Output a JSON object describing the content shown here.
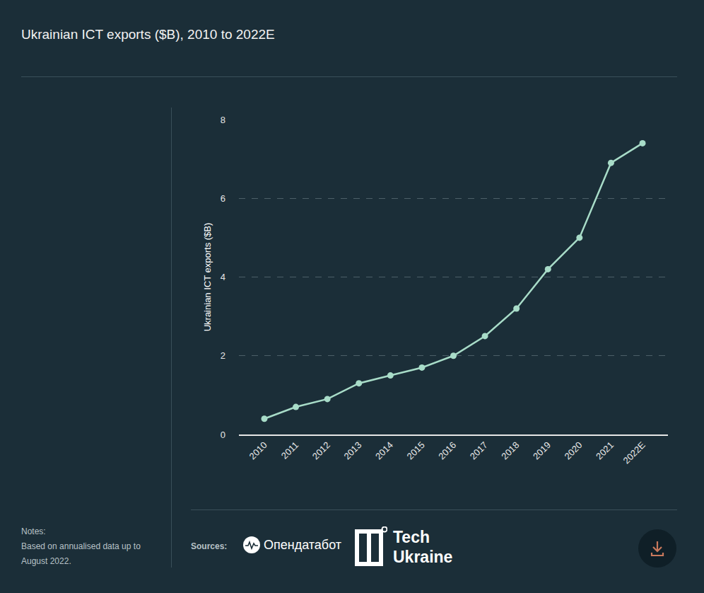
{
  "chart_data": {
    "type": "line",
    "title": "Ukrainian ICT exports ($B), 2010 to 2022E",
    "y_label": "Ukrainian ICT exports ($B)",
    "categories": [
      "2010",
      "2011",
      "2012",
      "2013",
      "2014",
      "2015",
      "2016",
      "2017",
      "2018",
      "2019",
      "2020",
      "2021",
      "2022E"
    ],
    "values": [
      0.4,
      0.7,
      0.9,
      1.3,
      1.5,
      1.7,
      2.0,
      2.5,
      3.2,
      4.2,
      5.0,
      6.9,
      7.4
    ],
    "color": "#a8dcc8",
    "marker": "circle",
    "line_style": "solid",
    "ylim": [
      0,
      8
    ],
    "yticks": [
      0,
      2,
      4,
      6,
      8
    ],
    "grid": true
  },
  "notes": {
    "label": "Notes:",
    "text": "Based on annualised data up to August 2022."
  },
  "sources": {
    "label": "Sources:",
    "names": [
      "Опендатабот",
      "Tech Ukraine"
    ]
  }
}
